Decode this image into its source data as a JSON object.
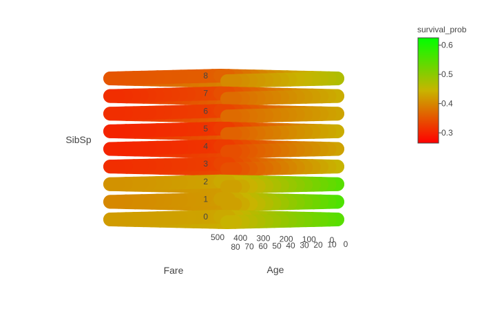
{
  "chart_data": {
    "type": "3d-scatter",
    "x_axis": {
      "label": "Fare",
      "ticks": [
        "500",
        "400",
        "300",
        "200",
        "100",
        "0"
      ],
      "range": [
        0,
        512
      ]
    },
    "y_axis": {
      "label": "Age",
      "ticks": [
        "80",
        "70",
        "60",
        "50",
        "40",
        "30",
        "20",
        "10",
        "0"
      ],
      "range": [
        0,
        80
      ]
    },
    "z_axis": {
      "label": "SibSp",
      "ticks": [
        "0",
        "1",
        "2",
        "3",
        "4",
        "5",
        "6",
        "7",
        "8"
      ],
      "range": [
        0,
        8
      ]
    },
    "colorbar": {
      "title": "survival_prob",
      "ticks": [
        "0.6",
        "0.5",
        "0.4",
        "0.3"
      ],
      "tick_values": [
        0.6,
        0.5,
        0.4,
        0.3
      ],
      "range": [
        0.265,
        0.625
      ],
      "colorscale": [
        [
          0,
          "#ff0000"
        ],
        [
          0.5,
          "#c8b400"
        ],
        [
          1,
          "#00ff00"
        ]
      ]
    },
    "series": [
      {
        "sibsp": 0,
        "points": [
          {
            "fare": 0,
            "age": 0,
            "survival_prob": 0.55
          },
          {
            "fare": 0,
            "age": 80,
            "survival_prob": 0.44
          },
          {
            "fare": 512,
            "age": 80,
            "survival_prob": 0.42
          },
          {
            "fare": 512,
            "age": 0,
            "survival_prob": 0.43
          }
        ]
      },
      {
        "sibsp": 1,
        "points": [
          {
            "fare": 0,
            "age": 0,
            "survival_prob": 0.56
          },
          {
            "fare": 0,
            "age": 80,
            "survival_prob": 0.42
          },
          {
            "fare": 512,
            "age": 80,
            "survival_prob": 0.4
          },
          {
            "fare": 512,
            "age": 0,
            "survival_prob": 0.42
          }
        ]
      },
      {
        "sibsp": 2,
        "points": [
          {
            "fare": 0,
            "age": 0,
            "survival_prob": 0.55
          },
          {
            "fare": 0,
            "age": 80,
            "survival_prob": 0.42
          },
          {
            "fare": 512,
            "age": 80,
            "survival_prob": 0.41
          },
          {
            "fare": 512,
            "age": 0,
            "survival_prob": 0.43
          }
        ]
      },
      {
        "sibsp": 3,
        "points": [
          {
            "fare": 0,
            "age": 0,
            "survival_prob": 0.45
          },
          {
            "fare": 0,
            "age": 80,
            "survival_prob": 0.34
          },
          {
            "fare": 512,
            "age": 80,
            "survival_prob": 0.31
          },
          {
            "fare": 512,
            "age": 0,
            "survival_prob": 0.33
          }
        ]
      },
      {
        "sibsp": 4,
        "points": [
          {
            "fare": 0,
            "age": 0,
            "survival_prob": 0.43
          },
          {
            "fare": 0,
            "age": 80,
            "survival_prob": 0.34
          },
          {
            "fare": 512,
            "age": 80,
            "survival_prob": 0.3
          },
          {
            "fare": 512,
            "age": 0,
            "survival_prob": 0.32
          }
        ]
      },
      {
        "sibsp": 5,
        "points": [
          {
            "fare": 0,
            "age": 0,
            "survival_prob": 0.44
          },
          {
            "fare": 0,
            "age": 80,
            "survival_prob": 0.36
          },
          {
            "fare": 512,
            "age": 80,
            "survival_prob": 0.3
          },
          {
            "fare": 512,
            "age": 0,
            "survival_prob": 0.32
          }
        ]
      },
      {
        "sibsp": 6,
        "points": [
          {
            "fare": 0,
            "age": 0,
            "survival_prob": 0.43
          },
          {
            "fare": 0,
            "age": 80,
            "survival_prob": 0.37
          },
          {
            "fare": 512,
            "age": 80,
            "survival_prob": 0.31
          },
          {
            "fare": 512,
            "age": 0,
            "survival_prob": 0.33
          }
        ]
      },
      {
        "sibsp": 7,
        "points": [
          {
            "fare": 0,
            "age": 0,
            "survival_prob": 0.44
          },
          {
            "fare": 0,
            "age": 80,
            "survival_prob": 0.37
          },
          {
            "fare": 512,
            "age": 80,
            "survival_prob": 0.31
          },
          {
            "fare": 512,
            "age": 0,
            "survival_prob": 0.34
          }
        ]
      },
      {
        "sibsp": 8,
        "points": [
          {
            "fare": 0,
            "age": 0,
            "survival_prob": 0.47
          },
          {
            "fare": 0,
            "age": 80,
            "survival_prob": 0.4
          },
          {
            "fare": 512,
            "age": 80,
            "survival_prob": 0.35
          },
          {
            "fare": 512,
            "age": 0,
            "survival_prob": 0.36
          }
        ]
      }
    ]
  }
}
